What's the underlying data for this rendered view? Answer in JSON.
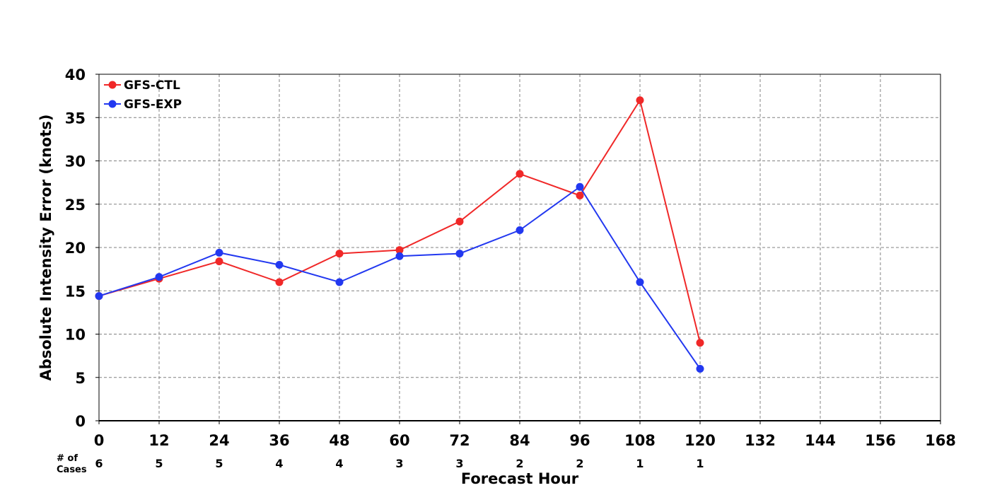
{
  "chart_data": {
    "type": "line",
    "title": "",
    "xlabel": "Forecast Hour",
    "ylabel": "Absolute Intensity Error (knots)",
    "xlim": [
      0,
      168
    ],
    "ylim": [
      0,
      40
    ],
    "x_ticks": [
      0,
      12,
      24,
      36,
      48,
      60,
      72,
      84,
      96,
      108,
      120,
      132,
      144,
      156,
      168
    ],
    "y_ticks": [
      0,
      5,
      10,
      15,
      20,
      25,
      30,
      35,
      40
    ],
    "grid": true,
    "legend_position": "top-left",
    "series": [
      {
        "name": "GFS-CTL",
        "color": "#f02828",
        "x": [
          0,
          12,
          24,
          36,
          48,
          60,
          72,
          84,
          96,
          108,
          120
        ],
        "values": [
          14.4,
          16.4,
          18.4,
          16.0,
          19.3,
          19.7,
          23.0,
          28.5,
          26.0,
          37.0,
          9.0
        ]
      },
      {
        "name": "GFS-EXP",
        "color": "#2238f0",
        "x": [
          0,
          12,
          24,
          36,
          48,
          60,
          72,
          84,
          96,
          108,
          120
        ],
        "values": [
          14.4,
          16.6,
          19.4,
          18.0,
          16.0,
          19.0,
          19.3,
          22.0,
          27.0,
          16.0,
          6.0
        ]
      }
    ],
    "cases": {
      "label_line1": "# of",
      "label_line2": "Cases",
      "x": [
        0,
        12,
        24,
        36,
        48,
        60,
        72,
        84,
        96,
        108,
        120
      ],
      "counts": [
        "6",
        "5",
        "5",
        "4",
        "4",
        "3",
        "3",
        "2",
        "2",
        "1",
        "1"
      ]
    }
  }
}
